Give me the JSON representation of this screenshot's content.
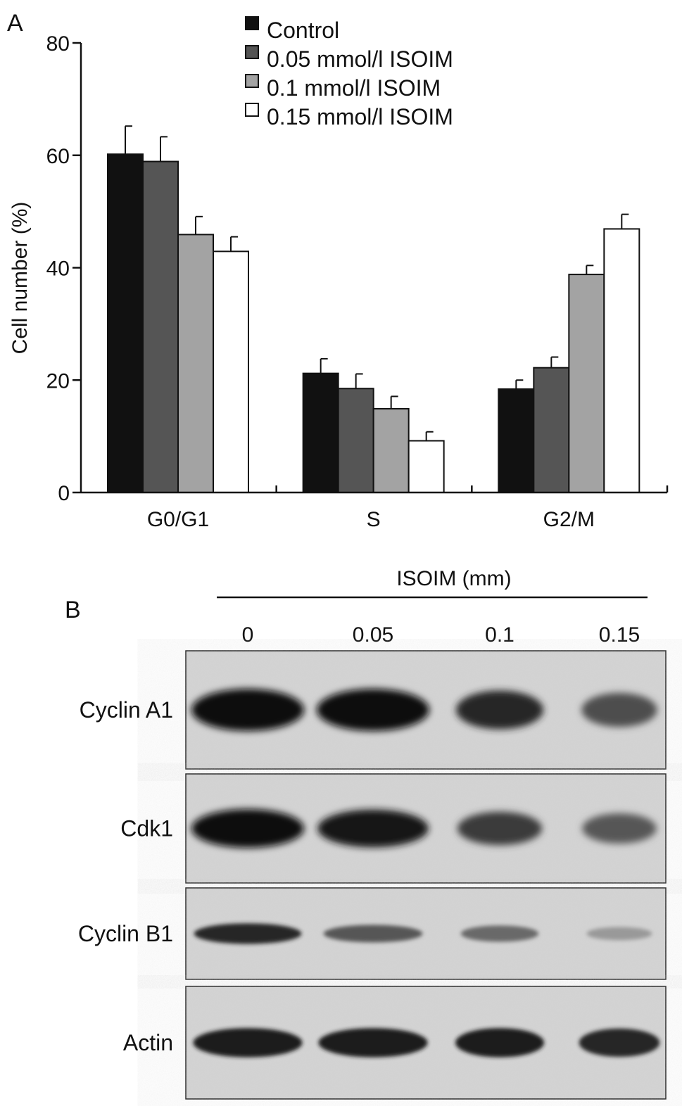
{
  "panel_a": {
    "label": "A",
    "chart_data": {
      "type": "bar",
      "categories": [
        "G0/G1",
        "S",
        "G2/M"
      ],
      "series": [
        {
          "name": "Control",
          "color": "#111111",
          "values": [
            60.2,
            21.2,
            18.4
          ],
          "errors": [
            5.0,
            2.6,
            1.6
          ]
        },
        {
          "name": "0.05 mmol/l ISOIM",
          "color": "#555555",
          "values": [
            58.9,
            18.5,
            22.2
          ],
          "errors": [
            4.4,
            2.6,
            1.9
          ]
        },
        {
          "name": "0.1 mmol/l ISOIM",
          "color": "#a3a3a3",
          "values": [
            45.9,
            14.9,
            38.8
          ],
          "errors": [
            3.2,
            2.2,
            1.6
          ]
        },
        {
          "name": "0.15 mmol/l ISOIM",
          "color": "#ffffff",
          "values": [
            42.9,
            9.2,
            46.9
          ],
          "errors": [
            2.6,
            1.6,
            2.6
          ]
        }
      ],
      "ylabel": "Cell number (%)",
      "xlabel": "",
      "ylim": [
        0,
        80
      ],
      "yticks": [
        0,
        20,
        40,
        60,
        80
      ],
      "grid": false,
      "legend_position": "top-center"
    }
  },
  "panel_b": {
    "label": "B",
    "header": "ISOIM (mm)",
    "concentrations": [
      "0",
      "0.05",
      "0.1",
      "0.15"
    ],
    "blots": [
      {
        "name": "Cyclin A1",
        "intensity": [
          1.0,
          1.0,
          0.85,
          0.65
        ]
      },
      {
        "name": "Cdk1",
        "intensity": [
          1.0,
          0.95,
          0.75,
          0.6
        ]
      },
      {
        "name": "Cyclin B1",
        "intensity": [
          0.85,
          0.6,
          0.5,
          0.25
        ]
      },
      {
        "name": "Actin",
        "intensity": [
          0.9,
          0.9,
          0.9,
          0.85
        ]
      }
    ]
  }
}
